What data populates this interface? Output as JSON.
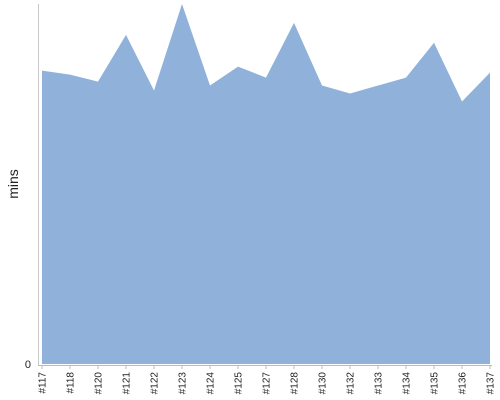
{
  "chart_data": {
    "type": "area",
    "ylabel": "mins",
    "y_tick_labels": [
      "0"
    ],
    "ylim": [
      0,
      362
    ],
    "x": [
      "#117",
      "#118",
      "#120",
      "#121",
      "#122",
      "#123",
      "#124",
      "#125",
      "#127",
      "#128",
      "#130",
      "#132",
      "#133",
      "#134",
      "#135",
      "#136",
      "#137"
    ],
    "series": [
      {
        "values": [
          295,
          291,
          284,
          331,
          275,
          362,
          280,
          299,
          288,
          343,
          280,
          272,
          280,
          288,
          323,
          264,
          293
        ],
        "color": "#8fb1da"
      }
    ],
    "grid": false,
    "legend": "none"
  }
}
